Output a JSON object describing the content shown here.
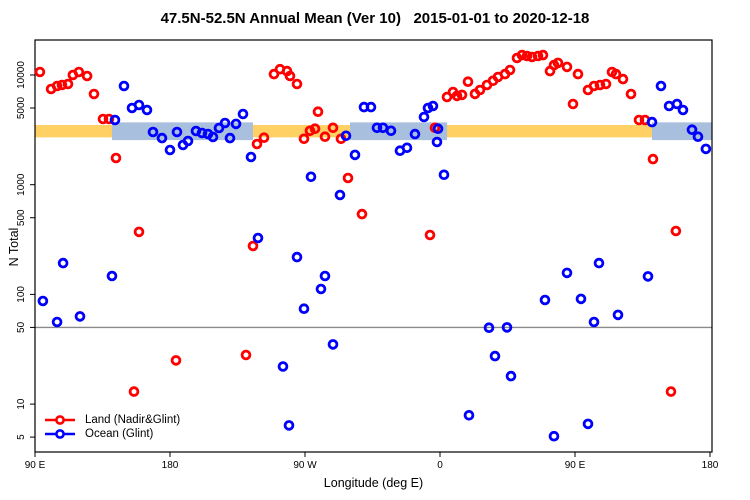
{
  "chart_data": {
    "type": "scatter",
    "title": "47.5N-52.5N Annual Mean (Ver 10)   2015-01-01 to 2020-12-18",
    "xlabel": "Longitude (deg E)",
    "ylabel": "N Total",
    "x_axis": {
      "min": 90,
      "max": 541.3,
      "tick_positions": [
        90,
        180,
        270,
        360,
        450,
        540
      ],
      "tick_labels": [
        "90 E",
        "180",
        "90 W",
        "0",
        "90 E",
        "180"
      ]
    },
    "y_axis": {
      "scale": "log",
      "min": 3.7,
      "max": 20800,
      "tick_values": [
        5,
        10,
        50,
        100,
        500,
        1000,
        5000,
        10000
      ],
      "tick_labels": [
        "5",
        "10",
        "50",
        "100",
        "500",
        "1000",
        "5000",
        "10000"
      ]
    },
    "grid": "off",
    "reference_line": {
      "n": 50,
      "color": "#8a8a8a"
    },
    "bands": {
      "yellow_band": {
        "color": "#FFD064",
        "n_min": 2700,
        "n_max": 3500,
        "lon_min": 90,
        "lon_max": 541.3,
        "note": "full-width horizontal band"
      },
      "blue_band": {
        "color": "#A8BFDE",
        "n_min": 2550,
        "n_max": 3700,
        "segments": [
          [
            141.3,
            235.3
          ],
          [
            300,
            364.7
          ],
          [
            501.3,
            541.3
          ]
        ]
      }
    },
    "legend_position": "bottom-left",
    "series": [
      {
        "name": "Land (Nadir&Glint)",
        "color": "#FF0000",
        "points": [
          [
            93.3,
            10650
          ],
          [
            100.7,
            7450
          ],
          [
            104.7,
            7940
          ],
          [
            108,
            8100
          ],
          [
            112,
            8270
          ],
          [
            115.3,
            10000
          ],
          [
            119.3,
            10650
          ],
          [
            124.7,
            9790
          ],
          [
            129.3,
            6710
          ],
          [
            135.3,
            3970
          ],
          [
            139.3,
            3970
          ],
          [
            144,
            1750
          ],
          [
            156,
            13
          ],
          [
            159.3,
            371
          ],
          [
            184,
            25
          ],
          [
            230.7,
            28
          ],
          [
            235.3,
            276
          ],
          [
            238,
            2350
          ],
          [
            242.7,
            2680
          ],
          [
            249.3,
            10200
          ],
          [
            253.3,
            11300
          ],
          [
            258,
            10850
          ],
          [
            260,
            9790
          ],
          [
            264.7,
            8270
          ],
          [
            269.3,
            2620
          ],
          [
            273.3,
            3100
          ],
          [
            276.7,
            3240
          ],
          [
            278.7,
            4630
          ],
          [
            283.3,
            2740
          ],
          [
            288.7,
            3300
          ],
          [
            294,
            2620
          ],
          [
            298.7,
            1150
          ],
          [
            308,
            540
          ],
          [
            353.3,
            348
          ],
          [
            356.7,
            3300
          ],
          [
            364.7,
            6300
          ],
          [
            368.7,
            7000
          ],
          [
            371.3,
            6450
          ],
          [
            374.7,
            6580
          ],
          [
            378.7,
            8680
          ],
          [
            383.3,
            6720
          ],
          [
            386.7,
            7300
          ],
          [
            391.3,
            8100
          ],
          [
            395.3,
            8860
          ],
          [
            398.7,
            9580
          ],
          [
            403.3,
            10200
          ],
          [
            406.7,
            11100
          ],
          [
            411.3,
            14300
          ],
          [
            414.7,
            15200
          ],
          [
            418,
            14900
          ],
          [
            421.3,
            14600
          ],
          [
            425.3,
            14900
          ],
          [
            428.7,
            15200
          ],
          [
            433.3,
            10850
          ],
          [
            436,
            12300
          ],
          [
            438.7,
            12900
          ],
          [
            444.7,
            11850
          ],
          [
            448.7,
            5440
          ],
          [
            452,
            10200
          ],
          [
            458.7,
            7300
          ],
          [
            462.7,
            7940
          ],
          [
            466.7,
            8100
          ],
          [
            470.7,
            8270
          ],
          [
            474.7,
            10650
          ],
          [
            477.3,
            10200
          ],
          [
            482,
            9170
          ],
          [
            487.3,
            6710
          ],
          [
            492.7,
            3890
          ],
          [
            496.7,
            3890
          ],
          [
            502,
            1710
          ],
          [
            514,
            13
          ],
          [
            517.3,
            378
          ]
        ]
      },
      {
        "name": "Ocean (Glint)",
        "color": "#0000FF",
        "points": [
          [
            95.3,
            87
          ],
          [
            104.7,
            56
          ],
          [
            108.7,
            193
          ],
          [
            120,
            63
          ],
          [
            141.3,
            147
          ],
          [
            143.3,
            3890
          ],
          [
            149.3,
            7940
          ],
          [
            154.7,
            5000
          ],
          [
            159.3,
            5330
          ],
          [
            164.7,
            4800
          ],
          [
            168.7,
            3020
          ],
          [
            174.7,
            2660
          ],
          [
            180,
            2070
          ],
          [
            184.7,
            3020
          ],
          [
            188.7,
            2300
          ],
          [
            192,
            2500
          ],
          [
            197.3,
            3090
          ],
          [
            201.3,
            2960
          ],
          [
            205.3,
            2900
          ],
          [
            208.7,
            2720
          ],
          [
            212.7,
            3290
          ],
          [
            216.7,
            3650
          ],
          [
            220,
            2660
          ],
          [
            224,
            3580
          ],
          [
            228.7,
            4410
          ],
          [
            234,
            1790
          ],
          [
            238.7,
            327
          ],
          [
            255.3,
            22
          ],
          [
            259.3,
            6.4
          ],
          [
            264.7,
            219
          ],
          [
            269.3,
            74
          ],
          [
            274,
            1180
          ],
          [
            280.7,
            112
          ],
          [
            283.3,
            147
          ],
          [
            288.7,
            35
          ],
          [
            293.3,
            805
          ],
          [
            297.3,
            2790
          ],
          [
            303.3,
            1870
          ],
          [
            309.3,
            5100
          ],
          [
            314,
            5100
          ],
          [
            318,
            3300
          ],
          [
            322,
            3300
          ],
          [
            327.3,
            3100
          ],
          [
            333.3,
            2040
          ],
          [
            338,
            2170
          ],
          [
            343.3,
            2890
          ],
          [
            349.3,
            4140
          ],
          [
            352,
            5000
          ],
          [
            355.3,
            5220
          ],
          [
            358,
            2450
          ],
          [
            358.7,
            3240
          ],
          [
            362.7,
            1230
          ],
          [
            379.3,
            7.9
          ],
          [
            392.7,
            49.7
          ],
          [
            396.7,
            27.4
          ],
          [
            404.7,
            50
          ],
          [
            407.3,
            18
          ],
          [
            430,
            89
          ],
          [
            436,
            5.1
          ],
          [
            444.7,
            157
          ],
          [
            454,
            91
          ],
          [
            458.7,
            6.6
          ],
          [
            462.7,
            56
          ],
          [
            466,
            193
          ],
          [
            478.7,
            65
          ],
          [
            498.7,
            146
          ],
          [
            501.3,
            3720
          ],
          [
            507.3,
            7940
          ],
          [
            512.7,
            5220
          ],
          [
            518,
            5440
          ],
          [
            522,
            4800
          ],
          [
            528,
            3170
          ],
          [
            532,
            2740
          ],
          [
            537.3,
            2120
          ]
        ]
      }
    ]
  }
}
